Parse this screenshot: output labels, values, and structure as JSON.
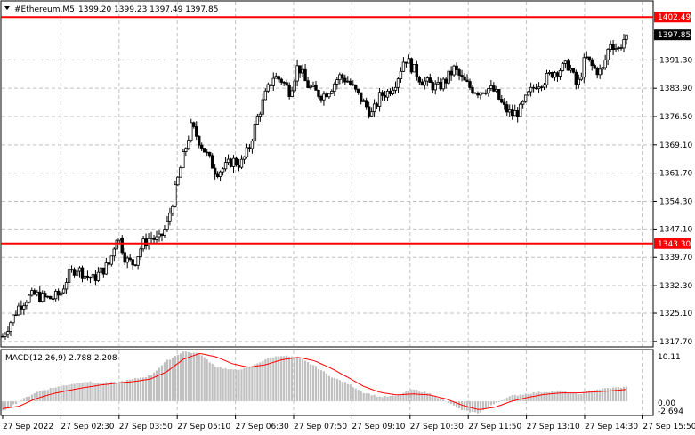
{
  "header": {
    "symbol": "#Ethereum,M5",
    "ohlc": "1399.20 1399.23 1397.49 1397.85"
  },
  "price_labels": {
    "upper_level": "1402.49",
    "lower_level": "1343.30",
    "current": "1397.85"
  },
  "macd": {
    "label": "MACD(12,26,9) 2.788 2.208",
    "scale_labels": [
      "10.11",
      "0.00",
      "-2.694"
    ]
  },
  "colors": {
    "background": "#ffffff",
    "candles": "#000000",
    "level_lines": "#ff0000",
    "signal_line": "#ff0000",
    "histogram": "#c0c0c0",
    "grid": "#c0c0c0"
  },
  "chart_data": {
    "type": "candlestick",
    "timeframe": "M5",
    "y_ticks": [
      1391.3,
      1383.9,
      1376.5,
      1369.1,
      1361.7,
      1354.3,
      1347.1,
      1339.7,
      1332.3,
      1325.1,
      1317.7
    ],
    "y_tick_labels": [
      "1391.30",
      "1383.90",
      "1376.50",
      "1369.10",
      "1361.70",
      "1354.30",
      "1347.10",
      "1339.70",
      "1332.30",
      "1325.10",
      "1317.70"
    ],
    "ylim": [
      1316.5,
      1406.5
    ],
    "x_tick_labels": [
      "27 Sep 2022",
      "27 Sep 02:30",
      "27 Sep 03:50",
      "27 Sep 05:10",
      "27 Sep 06:30",
      "27 Sep 07:50",
      "27 Sep 09:10",
      "27 Sep 10:30",
      "27 Sep 11:50",
      "27 Sep 13:10",
      "27 Sep 14:30",
      "27 Sep 15:50"
    ],
    "horizontal_levels": [
      1402.49,
      1343.3
    ],
    "last_price": 1397.85,
    "close_path": [
      1319,
      1323,
      1327,
      1329,
      1330,
      1329,
      1329,
      1330,
      1335,
      1337,
      1335,
      1334,
      1336,
      1338,
      1346,
      1339,
      1338,
      1343,
      1345,
      1344,
      1348,
      1357,
      1366,
      1374,
      1370,
      1366,
      1362,
      1363,
      1365,
      1364,
      1368,
      1376,
      1382,
      1387,
      1386,
      1383,
      1390,
      1385,
      1383,
      1382,
      1384,
      1387,
      1386,
      1383,
      1380,
      1377,
      1382,
      1383,
      1386,
      1392,
      1389,
      1386,
      1385,
      1384,
      1386,
      1389,
      1386,
      1384,
      1383,
      1384,
      1383,
      1379,
      1377,
      1378,
      1382,
      1385,
      1386,
      1388,
      1389,
      1390,
      1384,
      1392,
      1389,
      1388,
      1396,
      1394,
      1398
    ],
    "macd_signal_path": [
      -1.5,
      -1.0,
      0.5,
      1.5,
      2.2,
      2.8,
      3.3,
      3.7,
      4.0,
      4.5,
      6.0,
      8.5,
      9.7,
      9.0,
      7.6,
      6.9,
      7.4,
      8.4,
      8.9,
      8.2,
      6.7,
      4.9,
      3.0,
      1.8,
      1.3,
      1.5,
      1.3,
      0.5,
      -0.8,
      -1.7,
      -1.2,
      0.0,
      0.8,
      1.4,
      1.7,
      1.7,
      1.9,
      2.1,
      2.4
    ],
    "macd_hist_path": [
      -2.0,
      0.0,
      1.8,
      2.7,
      3.4,
      4.0,
      3.7,
      3.9,
      4.5,
      5.2,
      8.2,
      10.1,
      9.6,
      7.0,
      6.3,
      6.8,
      8.5,
      9.3,
      8.8,
      7.2,
      5.0,
      3.6,
      1.8,
      0.9,
      1.1,
      2.4,
      1.6,
      0.0,
      -1.9,
      -2.4,
      -0.4,
      1.1,
      1.6,
      1.9,
      2.0,
      1.4,
      2.3,
      2.7,
      2.9
    ]
  }
}
